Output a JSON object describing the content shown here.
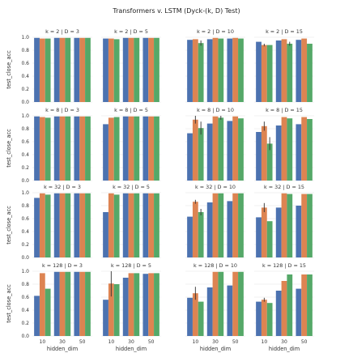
{
  "figure": {
    "title": "Transformers v. LSTM (Dyck-(k, D) Test)"
  },
  "colors": {
    "series": [
      "#4c72b0",
      "#dd8452",
      "#55a868"
    ],
    "error_bar": "#333333",
    "grid": "#e6e6e6"
  },
  "chart_data": {
    "type": "bar",
    "title": "Transformers v. LSTM (Dyck-(k, D) Test)",
    "xlabel": "hidden_dim",
    "ylabel": "test_close_acc",
    "categories": [
      "10",
      "30",
      "50"
    ],
    "ylim": [
      0.0,
      1.0
    ],
    "yticks": [
      "0.0",
      "0.2",
      "0.4",
      "0.6",
      "0.8",
      "1.0"
    ],
    "grid": true,
    "series_count": 3,
    "panels": [
      {
        "title": "k = 2 | D = 3",
        "values": [
          [
            0.99,
            0.98,
            0.98
          ],
          [
            0.99,
            0.99,
            0.99
          ],
          [
            0.99,
            0.99,
            0.99
          ]
        ],
        "err": [
          [
            0,
            0,
            0
          ],
          [
            0,
            0,
            0
          ],
          [
            0,
            0,
            0
          ]
        ]
      },
      {
        "title": "k = 2 | D = 5",
        "values": [
          [
            0.98,
            0.98,
            0.97
          ],
          [
            0.99,
            0.99,
            0.99
          ],
          [
            0.99,
            0.99,
            0.99
          ]
        ],
        "err": [
          [
            0,
            0,
            0
          ],
          [
            0,
            0,
            0
          ],
          [
            0,
            0,
            0
          ]
        ]
      },
      {
        "title": "k = 2 | D = 10",
        "values": [
          [
            0.96,
            0.97,
            0.91
          ],
          [
            0.97,
            0.99,
            0.98
          ],
          [
            0.98,
            0.99,
            0.98
          ]
        ],
        "err": [
          [
            0,
            0,
            0.04
          ],
          [
            0,
            0,
            0
          ],
          [
            0,
            0,
            0
          ]
        ]
      },
      {
        "title": "k = 2 | D = 15",
        "values": [
          [
            0.93,
            0.88,
            0.88
          ],
          [
            0.95,
            0.97,
            0.9
          ],
          [
            0.96,
            0.98,
            0.9
          ]
        ],
        "err": [
          [
            0,
            0.02,
            0
          ],
          [
            0,
            0,
            0.03
          ],
          [
            0,
            0,
            0
          ]
        ]
      },
      {
        "title": "k = 8 | D = 3",
        "values": [
          [
            0.99,
            0.98,
            0.97
          ],
          [
            0.99,
            0.99,
            0.99
          ],
          [
            0.99,
            0.99,
            0.99
          ]
        ],
        "err": [
          [
            0,
            0,
            0
          ],
          [
            0,
            0,
            0
          ],
          [
            0,
            0,
            0
          ]
        ]
      },
      {
        "title": "k = 8 | D = 5",
        "values": [
          [
            0.87,
            0.97,
            0.98
          ],
          [
            0.99,
            0.99,
            0.99
          ],
          [
            0.99,
            0.99,
            0.99
          ]
        ],
        "err": [
          [
            0,
            0,
            0
          ],
          [
            0,
            0,
            0
          ],
          [
            0,
            0,
            0
          ]
        ]
      },
      {
        "title": "k = 8 | D = 10",
        "values": [
          [
            0.73,
            0.94,
            0.81
          ],
          [
            0.88,
            0.99,
            0.97
          ],
          [
            0.92,
            0.99,
            0.96
          ]
        ],
        "err": [
          [
            0,
            0.06,
            0.1
          ],
          [
            0,
            0,
            0.03
          ],
          [
            0,
            0,
            0
          ]
        ]
      },
      {
        "title": "k = 8 | D = 15",
        "values": [
          [
            0.75,
            0.84,
            0.57
          ],
          [
            0.85,
            0.98,
            0.96
          ],
          [
            0.87,
            0.98,
            0.95
          ]
        ],
        "err": [
          [
            0,
            0.07,
            0.1
          ],
          [
            0,
            0,
            0
          ],
          [
            0,
            0,
            0
          ]
        ]
      },
      {
        "title": "k = 32 | D = 3",
        "values": [
          [
            0.92,
            0.99,
            0.97
          ],
          [
            0.99,
            0.99,
            0.99
          ],
          [
            0.99,
            0.99,
            0.99
          ]
        ],
        "err": [
          [
            0,
            0,
            0
          ],
          [
            0,
            0,
            0
          ],
          [
            0,
            0,
            0
          ]
        ]
      },
      {
        "title": "k = 32 | D = 5",
        "values": [
          [
            0.7,
            0.99,
            0.97
          ],
          [
            0.99,
            0.99,
            0.99
          ],
          [
            0.99,
            0.99,
            0.99
          ]
        ],
        "err": [
          [
            0,
            0,
            0
          ],
          [
            0,
            0,
            0
          ],
          [
            0,
            0,
            0
          ]
        ]
      },
      {
        "title": "k = 32 | D = 10",
        "values": [
          [
            0.63,
            0.86,
            0.7
          ],
          [
            0.85,
            0.99,
            0.99
          ],
          [
            0.87,
            0.99,
            0.99
          ]
        ],
        "err": [
          [
            0,
            0.03,
            0.05
          ],
          [
            0,
            0,
            0
          ],
          [
            0,
            0,
            0
          ]
        ]
      },
      {
        "title": "k = 32 | D = 15",
        "values": [
          [
            0.62,
            0.77,
            0.56
          ],
          [
            0.77,
            0.99,
            0.98
          ],
          [
            0.8,
            0.98,
            0.98
          ]
        ],
        "err": [
          [
            0,
            0.07,
            0
          ],
          [
            0,
            0,
            0
          ],
          [
            0,
            0,
            0
          ]
        ]
      },
      {
        "title": "k = 128 | D = 3",
        "values": [
          [
            0.62,
            0.97,
            0.73
          ],
          [
            0.99,
            0.99,
            0.99
          ],
          [
            0.99,
            0.99,
            0.99
          ]
        ],
        "err": [
          [
            0,
            0,
            0
          ],
          [
            0,
            0,
            0
          ],
          [
            0,
            0,
            0
          ]
        ]
      },
      {
        "title": "k = 128 | D = 5",
        "values": [
          [
            0.56,
            0.81,
            0.8
          ],
          [
            0.9,
            0.97,
            0.97
          ],
          [
            0.96,
            0.97,
            0.97
          ]
        ],
        "err": [
          [
            0,
            0.2,
            0
          ],
          [
            0,
            0,
            0
          ],
          [
            0,
            0,
            0
          ]
        ]
      },
      {
        "title": "k = 128 | D = 10",
        "values": [
          [
            0.59,
            0.66,
            0.53
          ],
          [
            0.75,
            0.99,
            0.99
          ],
          [
            0.78,
            0.99,
            0.99
          ]
        ],
        "err": [
          [
            0,
            0.1,
            0
          ],
          [
            0,
            0,
            0
          ],
          [
            0,
            0,
            0
          ]
        ]
      },
      {
        "title": "k = 128 | D = 15",
        "values": [
          [
            0.53,
            0.56,
            0.51
          ],
          [
            0.7,
            0.85,
            0.95
          ],
          [
            0.73,
            0.95,
            0.95
          ]
        ],
        "err": [
          [
            0,
            0.03,
            0
          ],
          [
            0,
            0,
            0
          ],
          [
            0,
            0,
            0
          ]
        ]
      }
    ]
  }
}
